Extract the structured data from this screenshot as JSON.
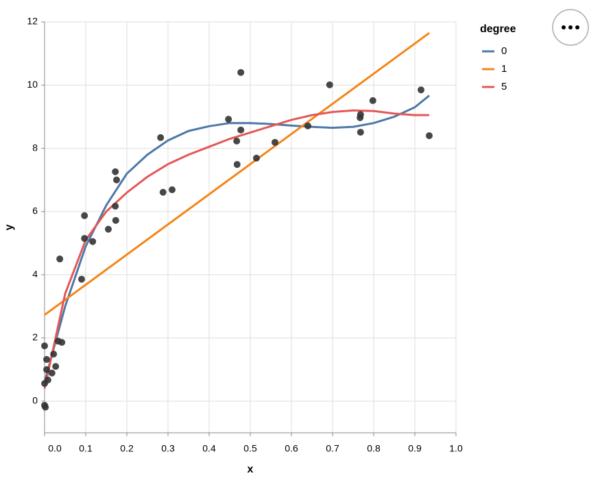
{
  "chart_data": {
    "type": "scatter",
    "x_label": "x",
    "y_label": "y",
    "legend_title": "degree",
    "xlim": [
      0,
      1
    ],
    "ylim": [
      -1,
      12
    ],
    "xticks": [
      {
        "value": 0,
        "label": "0.0"
      },
      0.1,
      0.2,
      0.3,
      0.4,
      0.5,
      0.6,
      0.7,
      0.8,
      0.9,
      {
        "value": 1,
        "label": "1.0"
      }
    ],
    "yticks": [
      0,
      2,
      4,
      6,
      8,
      10,
      12
    ],
    "grid": true,
    "points": {
      "color": "#333333",
      "x": [
        0.0,
        0.005,
        0.0,
        0.008,
        0.0,
        0.002,
        0.005,
        0.018,
        0.022,
        0.027,
        0.033,
        0.042,
        0.037,
        0.09,
        0.097,
        0.097,
        0.117,
        0.155,
        0.172,
        0.175,
        0.172,
        0.173,
        0.282,
        0.288,
        0.31,
        0.447,
        0.477,
        0.477,
        0.467,
        0.468,
        0.515,
        0.56,
        0.64,
        0.693,
        0.767,
        0.768,
        0.768,
        0.798,
        0.915,
        0.935
      ],
      "y": [
        1.75,
        1.32,
        0.56,
        0.67,
        -0.13,
        -0.19,
        1.0,
        0.89,
        1.49,
        1.1,
        1.9,
        1.86,
        4.5,
        3.86,
        5.87,
        5.15,
        5.05,
        5.44,
        7.26,
        7.0,
        6.17,
        5.72,
        8.34,
        6.61,
        6.69,
        8.92,
        10.4,
        8.58,
        8.23,
        7.49,
        7.69,
        8.19,
        8.71,
        10.01,
        8.97,
        9.07,
        8.51,
        9.51,
        9.85,
        8.4
      ]
    },
    "series": [
      {
        "name": "0",
        "color": "#4c78a8",
        "x": [
          0,
          0.05,
          0.1,
          0.15,
          0.2,
          0.25,
          0.3,
          0.35,
          0.4,
          0.45,
          0.5,
          0.55,
          0.6,
          0.65,
          0.7,
          0.75,
          0.8,
          0.85,
          0.9,
          0.935
        ],
        "values": [
          0.6,
          3.0,
          4.9,
          6.2,
          7.2,
          7.8,
          8.25,
          8.55,
          8.7,
          8.8,
          8.8,
          8.77,
          8.72,
          8.68,
          8.65,
          8.68,
          8.8,
          9.0,
          9.3,
          9.67
        ]
      },
      {
        "name": "1",
        "color": "#f58518",
        "x": [
          0,
          0.935
        ],
        "values": [
          2.73,
          11.65
        ]
      },
      {
        "name": "5",
        "color": "#e45756",
        "x": [
          0,
          0.05,
          0.1,
          0.15,
          0.2,
          0.25,
          0.3,
          0.35,
          0.4,
          0.45,
          0.5,
          0.55,
          0.6,
          0.65,
          0.7,
          0.75,
          0.8,
          0.85,
          0.9,
          0.935
        ],
        "values": [
          0.4,
          3.4,
          5.1,
          6.0,
          6.6,
          7.1,
          7.5,
          7.8,
          8.05,
          8.3,
          8.5,
          8.7,
          8.9,
          9.05,
          9.15,
          9.2,
          9.18,
          9.1,
          9.05,
          9.05
        ]
      }
    ]
  }
}
